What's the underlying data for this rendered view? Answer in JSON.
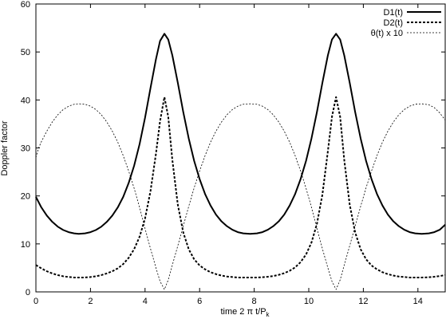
{
  "chart_data": {
    "type": "line",
    "xlabel": {
      "prefix": "time 2 π t/P",
      "subscript": "k"
    },
    "ylabel": "Doppler factor",
    "xlim": [
      0,
      15
    ],
    "ylim": [
      0,
      60
    ],
    "xticks": [
      0,
      2,
      4,
      6,
      8,
      10,
      12,
      14
    ],
    "yticks": [
      0,
      10,
      20,
      30,
      40,
      50,
      60
    ],
    "grid": false,
    "legend_position": "top-right",
    "series": [
      {
        "name": "D1(t)",
        "style": "solid-thick",
        "color": "#000000",
        "points": [
          [
            0,
            19.8
          ],
          [
            0.2,
            17.6
          ],
          [
            0.4,
            15.9
          ],
          [
            0.6,
            14.6
          ],
          [
            0.8,
            13.6
          ],
          [
            1.0,
            12.9
          ],
          [
            1.2,
            12.45
          ],
          [
            1.4,
            12.2
          ],
          [
            1.57,
            12.1
          ],
          [
            1.8,
            12.2
          ],
          [
            2.0,
            12.45
          ],
          [
            2.2,
            12.9
          ],
          [
            2.4,
            13.6
          ],
          [
            2.6,
            14.6
          ],
          [
            2.8,
            15.9
          ],
          [
            3.0,
            17.6
          ],
          [
            3.2,
            19.8
          ],
          [
            3.4,
            22.7
          ],
          [
            3.6,
            26.3
          ],
          [
            3.8,
            30.8
          ],
          [
            4.0,
            36.3
          ],
          [
            4.2,
            42.5
          ],
          [
            4.4,
            48.5
          ],
          [
            4.55,
            52.3
          ],
          [
            4.71,
            53.8
          ],
          [
            4.85,
            52.6
          ],
          [
            5.0,
            49.3
          ],
          [
            5.2,
            43.6
          ],
          [
            5.4,
            37.5
          ],
          [
            5.6,
            32.0
          ],
          [
            5.8,
            27.3
          ],
          [
            6.0,
            23.5
          ],
          [
            6.2,
            20.4
          ],
          [
            6.4,
            18.0
          ],
          [
            6.6,
            16.1
          ],
          [
            6.8,
            14.7
          ],
          [
            7.0,
            13.7
          ],
          [
            7.2,
            12.95
          ],
          [
            7.4,
            12.45
          ],
          [
            7.6,
            12.2
          ],
          [
            7.85,
            12.1
          ],
          [
            8.1,
            12.2
          ],
          [
            8.3,
            12.45
          ],
          [
            8.5,
            12.95
          ],
          [
            8.7,
            13.7
          ],
          [
            8.9,
            14.7
          ],
          [
            9.1,
            16.1
          ],
          [
            9.3,
            18.0
          ],
          [
            9.5,
            20.4
          ],
          [
            9.7,
            23.5
          ],
          [
            9.9,
            27.3
          ],
          [
            10.1,
            32.0
          ],
          [
            10.3,
            37.5
          ],
          [
            10.5,
            43.6
          ],
          [
            10.7,
            49.3
          ],
          [
            10.85,
            52.6
          ],
          [
            11.0,
            53.8
          ],
          [
            11.15,
            52.6
          ],
          [
            11.3,
            49.3
          ],
          [
            11.5,
            43.6
          ],
          [
            11.7,
            37.5
          ],
          [
            11.9,
            32.0
          ],
          [
            12.1,
            27.3
          ],
          [
            12.3,
            23.5
          ],
          [
            12.5,
            20.4
          ],
          [
            12.7,
            18.0
          ],
          [
            12.9,
            16.1
          ],
          [
            13.1,
            14.7
          ],
          [
            13.3,
            13.7
          ],
          [
            13.5,
            12.95
          ],
          [
            13.7,
            12.45
          ],
          [
            13.9,
            12.2
          ],
          [
            14.14,
            12.1
          ],
          [
            14.4,
            12.2
          ],
          [
            14.6,
            12.45
          ],
          [
            14.8,
            12.95
          ],
          [
            15.0,
            14.0
          ]
        ]
      },
      {
        "name": "D2(t)",
        "style": "dashed-thick",
        "color": "#000000",
        "points": [
          [
            0,
            5.6
          ],
          [
            0.2,
            4.9
          ],
          [
            0.4,
            4.3
          ],
          [
            0.6,
            3.85
          ],
          [
            0.8,
            3.5
          ],
          [
            1.0,
            3.25
          ],
          [
            1.2,
            3.1
          ],
          [
            1.4,
            3.0
          ],
          [
            1.57,
            3.0
          ],
          [
            1.8,
            3.0
          ],
          [
            2.0,
            3.1
          ],
          [
            2.2,
            3.25
          ],
          [
            2.4,
            3.5
          ],
          [
            2.6,
            3.85
          ],
          [
            2.8,
            4.3
          ],
          [
            3.0,
            4.9
          ],
          [
            3.2,
            5.8
          ],
          [
            3.4,
            7.1
          ],
          [
            3.6,
            8.9
          ],
          [
            3.8,
            11.5
          ],
          [
            4.0,
            15.3
          ],
          [
            4.2,
            21.0
          ],
          [
            4.4,
            28.8
          ],
          [
            4.55,
            35.6
          ],
          [
            4.71,
            40.6
          ],
          [
            4.85,
            36.5
          ],
          [
            5.0,
            27.5
          ],
          [
            5.2,
            18.2
          ],
          [
            5.4,
            12.4
          ],
          [
            5.6,
            8.9
          ],
          [
            5.8,
            6.8
          ],
          [
            6.0,
            5.5
          ],
          [
            6.2,
            4.7
          ],
          [
            6.4,
            4.1
          ],
          [
            6.6,
            3.7
          ],
          [
            6.8,
            3.4
          ],
          [
            7.0,
            3.2
          ],
          [
            7.2,
            3.1
          ],
          [
            7.4,
            3.0
          ],
          [
            7.6,
            3.0
          ],
          [
            7.85,
            3.0
          ],
          [
            8.1,
            3.0
          ],
          [
            8.3,
            3.05
          ],
          [
            8.5,
            3.15
          ],
          [
            8.7,
            3.3
          ],
          [
            8.9,
            3.55
          ],
          [
            9.1,
            3.9
          ],
          [
            9.3,
            4.4
          ],
          [
            9.5,
            5.1
          ],
          [
            9.7,
            6.2
          ],
          [
            9.9,
            7.8
          ],
          [
            10.1,
            10.3
          ],
          [
            10.3,
            14.2
          ],
          [
            10.5,
            20.3
          ],
          [
            10.7,
            29.3
          ],
          [
            10.85,
            36.5
          ],
          [
            11.0,
            40.6
          ],
          [
            11.15,
            36.5
          ],
          [
            11.3,
            27.5
          ],
          [
            11.5,
            18.2
          ],
          [
            11.7,
            12.4
          ],
          [
            11.9,
            8.9
          ],
          [
            12.1,
            6.8
          ],
          [
            12.3,
            5.5
          ],
          [
            12.5,
            4.7
          ],
          [
            12.7,
            4.1
          ],
          [
            12.9,
            3.7
          ],
          [
            13.1,
            3.4
          ],
          [
            13.3,
            3.2
          ],
          [
            13.5,
            3.1
          ],
          [
            13.7,
            3.0
          ],
          [
            13.9,
            3.0
          ],
          [
            14.14,
            3.0
          ],
          [
            14.4,
            3.05
          ],
          [
            14.6,
            3.15
          ],
          [
            14.8,
            3.3
          ],
          [
            15.0,
            3.5
          ]
        ]
      },
      {
        "name": "θ(t) x 10",
        "style": "dotted-thin",
        "color": "#000000",
        "points": [
          [
            0,
            28.0
          ],
          [
            0.1,
            30.0
          ],
          [
            0.2,
            31.3
          ],
          [
            0.4,
            33.5
          ],
          [
            0.6,
            35.4
          ],
          [
            0.8,
            36.9
          ],
          [
            1.0,
            38.0
          ],
          [
            1.2,
            38.7
          ],
          [
            1.4,
            39.1
          ],
          [
            1.57,
            39.2
          ],
          [
            1.8,
            39.1
          ],
          [
            2.0,
            38.7
          ],
          [
            2.2,
            38.0
          ],
          [
            2.4,
            36.9
          ],
          [
            2.6,
            35.4
          ],
          [
            2.8,
            33.5
          ],
          [
            3.0,
            31.2
          ],
          [
            3.2,
            28.4
          ],
          [
            3.4,
            25.2
          ],
          [
            3.6,
            21.6
          ],
          [
            3.8,
            17.6
          ],
          [
            4.0,
            13.2
          ],
          [
            4.2,
            9.0
          ],
          [
            4.4,
            5.0
          ],
          [
            4.55,
            2.2
          ],
          [
            4.71,
            0.5
          ],
          [
            4.85,
            2.5
          ],
          [
            5.0,
            5.6
          ],
          [
            5.2,
            9.6
          ],
          [
            5.4,
            13.7
          ],
          [
            5.6,
            17.8
          ],
          [
            5.8,
            21.7
          ],
          [
            6.0,
            25.2
          ],
          [
            6.2,
            28.4
          ],
          [
            6.4,
            31.2
          ],
          [
            6.6,
            33.5
          ],
          [
            6.8,
            35.4
          ],
          [
            7.0,
            36.9
          ],
          [
            7.2,
            38.0
          ],
          [
            7.4,
            38.7
          ],
          [
            7.6,
            39.1
          ],
          [
            7.85,
            39.2
          ],
          [
            8.1,
            39.1
          ],
          [
            8.3,
            38.7
          ],
          [
            8.5,
            38.0
          ],
          [
            8.7,
            36.9
          ],
          [
            8.9,
            35.4
          ],
          [
            9.1,
            33.5
          ],
          [
            9.3,
            31.2
          ],
          [
            9.5,
            28.4
          ],
          [
            9.7,
            25.2
          ],
          [
            9.9,
            21.6
          ],
          [
            10.1,
            17.6
          ],
          [
            10.3,
            13.2
          ],
          [
            10.5,
            9.0
          ],
          [
            10.7,
            5.0
          ],
          [
            10.85,
            2.2
          ],
          [
            11.0,
            0.5
          ],
          [
            11.15,
            2.5
          ],
          [
            11.3,
            5.6
          ],
          [
            11.5,
            9.6
          ],
          [
            11.7,
            13.7
          ],
          [
            11.9,
            17.8
          ],
          [
            12.1,
            21.7
          ],
          [
            12.3,
            25.2
          ],
          [
            12.5,
            28.4
          ],
          [
            12.7,
            31.2
          ],
          [
            12.9,
            33.5
          ],
          [
            13.1,
            35.4
          ],
          [
            13.3,
            36.9
          ],
          [
            13.5,
            38.0
          ],
          [
            13.7,
            38.7
          ],
          [
            13.9,
            39.1
          ],
          [
            14.14,
            39.2
          ],
          [
            14.4,
            39.0
          ],
          [
            14.6,
            38.4
          ],
          [
            14.8,
            37.3
          ],
          [
            15.0,
            35.8
          ]
        ]
      }
    ]
  }
}
